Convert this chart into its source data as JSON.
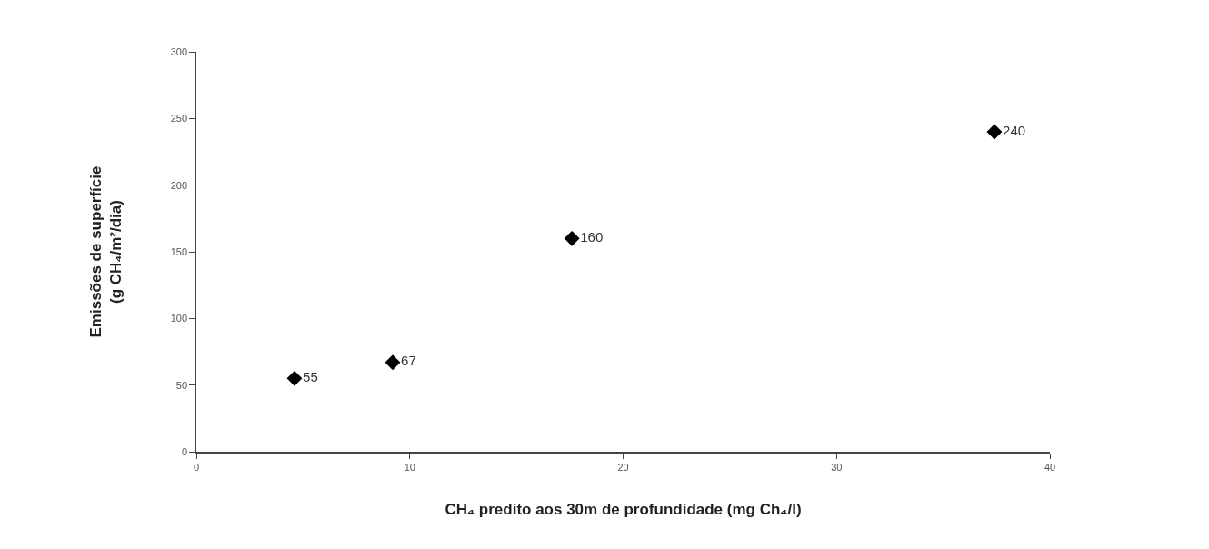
{
  "chart_data": {
    "type": "scatter",
    "xlabel": "CH₄ predito aos 30m de profundidade (mg Ch₄/l)",
    "ylabel": "Emissões de superfície\n(g CH₄/m²/dia)",
    "x": [
      4.6,
      9.2,
      17.6,
      37.4
    ],
    "series": [
      {
        "color": "#000000",
        "values": [
          55,
          67,
          160,
          240
        ]
      }
    ],
    "data_labels": true,
    "marker": "diamond",
    "xlim": [
      0,
      40
    ],
    "xticks": [
      0,
      10,
      20,
      30,
      40
    ],
    "ylim": [
      0,
      300
    ],
    "yticks": [
      0,
      50,
      100,
      150,
      200,
      250,
      300
    ]
  }
}
